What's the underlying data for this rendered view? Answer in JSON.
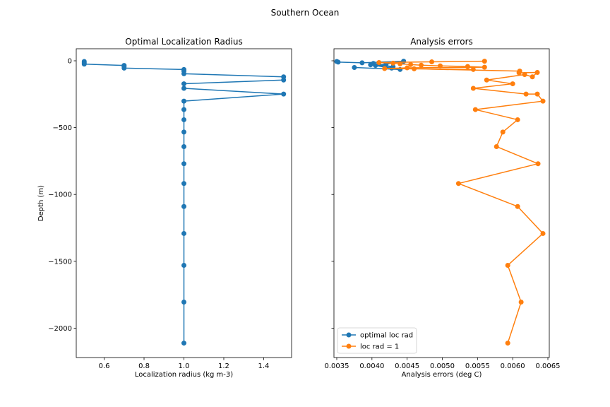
{
  "figure": {
    "suptitle": "Southern Ocean"
  },
  "chart_data": [
    {
      "type": "line",
      "title": "Optimal Localization Radius",
      "xlabel": "Localization radius (kg m-3)",
      "ylabel": "Depth (m)",
      "xlim": [
        0.46,
        1.54
      ],
      "ylim": [
        -2220,
        90
      ],
      "xticks": [
        0.6,
        0.8,
        1.0,
        1.2,
        1.4
      ],
      "xtick_labels": [
        "0.6",
        "0.8",
        "1.0",
        "1.2",
        "1.4"
      ],
      "yticks": [
        0,
        -500,
        -1000,
        -1500,
        -2000
      ],
      "ytick_labels": [
        "0",
        "−500",
        "−1000",
        "−1500",
        "−2000"
      ],
      "grid": false,
      "series": [
        {
          "color": "#1f77b4",
          "marker": "circle",
          "x": [
            0.5,
            0.5,
            0.5,
            0.7,
            0.7,
            0.7,
            1.0,
            1.0,
            1.0,
            1.5,
            1.5,
            1.0,
            1.0,
            1.5,
            1.0,
            1.0,
            1.0,
            1.0,
            1.0,
            1.0,
            1.0,
            1.0,
            1.0,
            1.0,
            1.0,
            1.0
          ],
          "y": [
            -5,
            -15,
            -25,
            -35,
            -45,
            -55,
            -65,
            -77,
            -97,
            -120,
            -144,
            -172,
            -206,
            -249,
            -302,
            -365,
            -441,
            -533,
            -642,
            -770,
            -918,
            -1090,
            -1292,
            -1530,
            -1805,
            -2112
          ]
        }
      ]
    },
    {
      "type": "line",
      "title": "Analysis errors",
      "xlabel": "Analysis errors (deg C)",
      "ylabel": "",
      "xlim": [
        0.00346,
        0.00652
      ],
      "ylim": [
        -2220,
        90
      ],
      "xticks": [
        0.0035,
        0.004,
        0.0045,
        0.005,
        0.0055,
        0.006,
        0.0065
      ],
      "xtick_labels": [
        "0.0035",
        "0.0040",
        "0.0045",
        "0.0050",
        "0.0055",
        "0.0060",
        "0.0065"
      ],
      "yticks": [
        0,
        -500,
        -1000,
        -1500,
        -2000
      ],
      "grid": false,
      "legend": {
        "position": "lower-left"
      },
      "series": [
        {
          "name": "optimal loc rad",
          "color": "#1f77b4",
          "marker": "circle",
          "x": [
            0.0035,
            0.00352,
            0.00386,
            0.00445,
            0.0042,
            0.00405,
            0.0043,
            0.00402,
            0.00398,
            0.00428,
            0.0044,
            0.00375
          ],
          "y": [
            -5,
            -10,
            -15,
            -3,
            -25,
            -35,
            -45,
            -20,
            -30,
            -55,
            -65,
            -50
          ]
        },
        {
          "name": "loc rad = 1",
          "color": "#ff7f0e",
          "marker": "circle",
          "x": [
            0.0056,
            0.00485,
            0.0041,
            0.0043,
            0.0044,
            0.00455,
            0.0047,
            0.00497,
            0.00536,
            0.0056,
            0.0045,
            0.00418,
            0.00544,
            0.0046,
            0.0061,
            0.00609,
            0.00635,
            0.00628,
            0.00617,
            0.00563,
            0.006,
            0.00544,
            0.00619,
            0.00635,
            0.00643,
            0.00547,
            0.00607,
            0.00586,
            0.00577,
            0.00636,
            0.00523,
            0.00607,
            0.00643,
            0.00593,
            0.00612,
            0.00593
          ],
          "y": [
            -3,
            -8,
            -13,
            -18,
            -23,
            -28,
            -33,
            -38,
            -43,
            -48,
            -53,
            -58,
            -65,
            -60,
            -77,
            -90,
            -87,
            -120,
            -103,
            -144,
            -172,
            -206,
            -249,
            -249,
            -302,
            -365,
            -441,
            -533,
            -642,
            -770,
            -918,
            -1090,
            -1292,
            -1530,
            -1805,
            -2112
          ]
        }
      ]
    }
  ]
}
